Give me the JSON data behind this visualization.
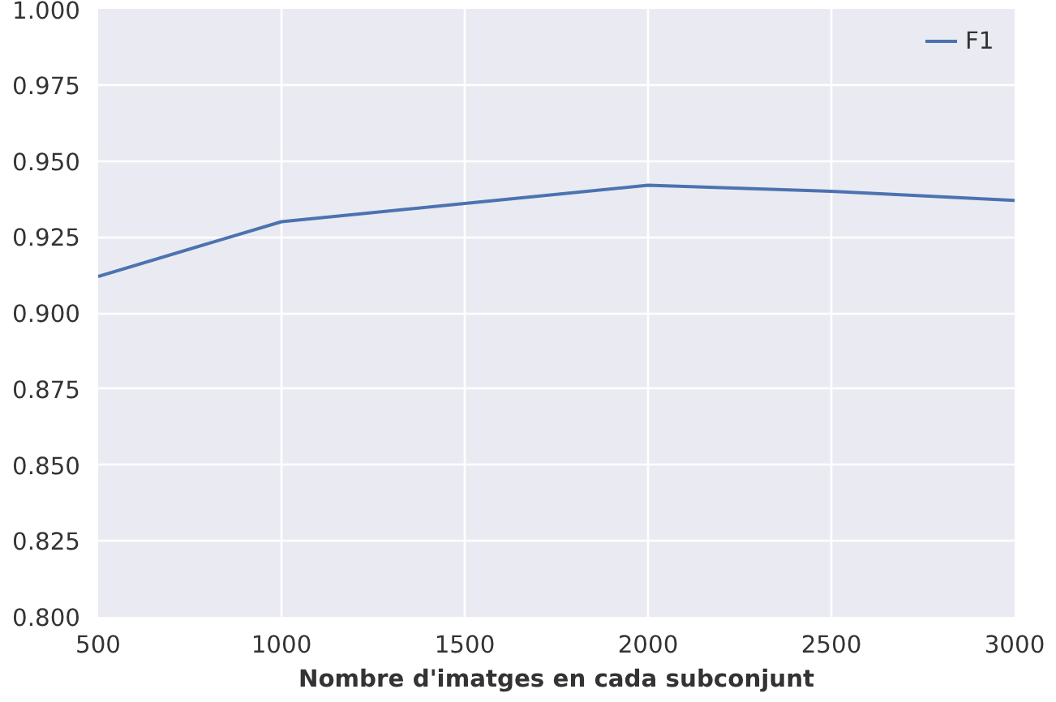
{
  "chart_data": {
    "type": "line",
    "xlabel": "Nombre d'imatges en cada subconjunt",
    "x": [
      500,
      1000,
      1500,
      2000,
      2500,
      3000
    ],
    "series": [
      {
        "name": "F1",
        "color": "#4c72b0",
        "values": [
          0.912,
          0.93,
          0.936,
          0.942,
          0.94,
          0.937
        ]
      }
    ],
    "xlim": [
      500,
      3000
    ],
    "xticks": [
      500,
      1000,
      1500,
      2000,
      2500,
      3000
    ],
    "ylim": [
      0.8,
      1.0
    ],
    "yticks": [
      {
        "value": 0.8,
        "label": "0.800"
      },
      {
        "value": 0.825,
        "label": "0.825"
      },
      {
        "value": 0.85,
        "label": "0.850"
      },
      {
        "value": 0.875,
        "label": "0.875"
      },
      {
        "value": 0.9,
        "label": "0.900"
      },
      {
        "value": 0.925,
        "label": "0.925"
      },
      {
        "value": 0.95,
        "label": "0.950"
      },
      {
        "value": 0.975,
        "label": "0.975"
      },
      {
        "value": 1.0,
        "label": "1.000"
      }
    ],
    "grid": true,
    "legend": "top right",
    "marker": "none",
    "line_style": "solid"
  }
}
